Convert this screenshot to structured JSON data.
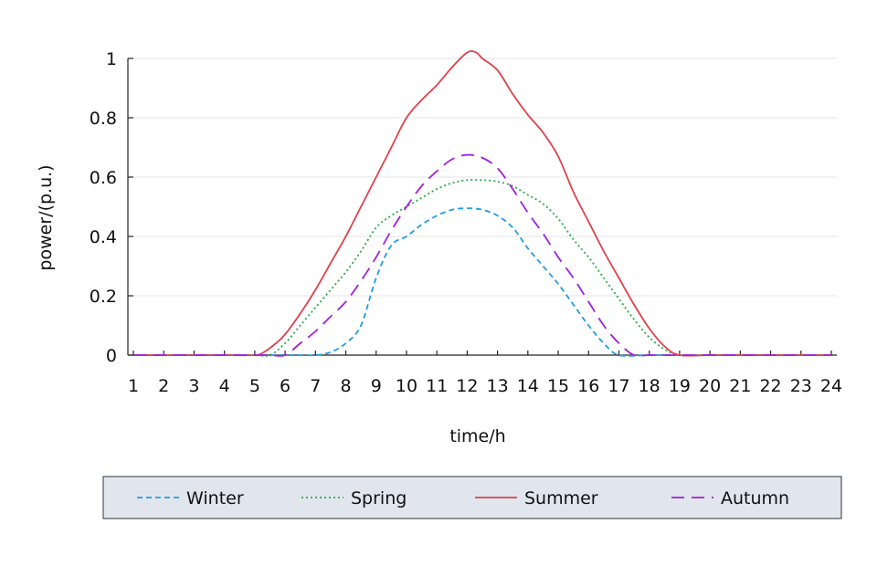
{
  "chart_data": {
    "type": "line",
    "title": "",
    "xlabel": "time/h",
    "ylabel": "power/(p.u.)",
    "xlim": [
      1,
      24
    ],
    "ylim": [
      0,
      1
    ],
    "x_ticks": [
      1,
      2,
      3,
      4,
      5,
      6,
      7,
      8,
      9,
      10,
      11,
      12,
      13,
      14,
      15,
      16,
      17,
      18,
      19,
      20,
      21,
      22,
      23,
      24
    ],
    "y_ticks": [
      0,
      0.2,
      0.4,
      0.6,
      0.8,
      1
    ],
    "y_tick_labels": [
      "0",
      "0.2",
      "0.4",
      "0.6",
      "0.8",
      "1"
    ],
    "grid": "horizontal",
    "legend_position": "bottom",
    "series": [
      {
        "name": "Winter",
        "color": "#1f9de0",
        "dash": "short-dash",
        "points": [
          [
            1,
            0
          ],
          [
            2,
            0
          ],
          [
            3,
            0
          ],
          [
            4,
            0
          ],
          [
            5,
            0
          ],
          [
            6,
            0
          ],
          [
            6.5,
            0
          ],
          [
            7,
            0
          ],
          [
            7.5,
            0.01
          ],
          [
            8,
            0.04
          ],
          [
            8.5,
            0.1
          ],
          [
            9,
            0.26
          ],
          [
            9.5,
            0.37
          ],
          [
            10,
            0.4
          ],
          [
            10.5,
            0.44
          ],
          [
            11,
            0.47
          ],
          [
            11.5,
            0.49
          ],
          [
            12,
            0.495
          ],
          [
            12.5,
            0.49
          ],
          [
            13,
            0.47
          ],
          [
            13.5,
            0.43
          ],
          [
            14,
            0.36
          ],
          [
            14.5,
            0.3
          ],
          [
            15,
            0.24
          ],
          [
            15.5,
            0.17
          ],
          [
            16,
            0.1
          ],
          [
            16.5,
            0.04
          ],
          [
            17,
            0
          ],
          [
            18,
            0
          ],
          [
            19,
            0
          ],
          [
            20,
            0
          ],
          [
            21,
            0
          ],
          [
            22,
            0
          ],
          [
            23,
            0
          ],
          [
            24,
            0
          ]
        ]
      },
      {
        "name": "Spring",
        "color": "#2aa84a",
        "dash": "dotted",
        "points": [
          [
            1,
            0
          ],
          [
            2,
            0
          ],
          [
            3,
            0
          ],
          [
            4,
            0
          ],
          [
            5,
            0
          ],
          [
            5.5,
            0
          ],
          [
            6,
            0.04
          ],
          [
            6.5,
            0.1
          ],
          [
            7,
            0.16
          ],
          [
            7.5,
            0.22
          ],
          [
            8,
            0.28
          ],
          [
            8.5,
            0.35
          ],
          [
            9,
            0.43
          ],
          [
            9.5,
            0.47
          ],
          [
            10,
            0.5
          ],
          [
            10.5,
            0.53
          ],
          [
            11,
            0.56
          ],
          [
            11.5,
            0.58
          ],
          [
            12,
            0.59
          ],
          [
            12.5,
            0.59
          ],
          [
            13,
            0.585
          ],
          [
            13.5,
            0.57
          ],
          [
            14,
            0.54
          ],
          [
            14.5,
            0.51
          ],
          [
            15,
            0.46
          ],
          [
            15.5,
            0.39
          ],
          [
            16,
            0.33
          ],
          [
            16.5,
            0.26
          ],
          [
            17,
            0.19
          ],
          [
            17.5,
            0.12
          ],
          [
            18,
            0.06
          ],
          [
            18.5,
            0.02
          ],
          [
            19,
            0
          ],
          [
            20,
            0
          ],
          [
            21,
            0
          ],
          [
            22,
            0
          ],
          [
            23,
            0
          ],
          [
            24,
            0
          ]
        ]
      },
      {
        "name": "Summer",
        "color": "#e0404b",
        "dash": "solid",
        "points": [
          [
            1,
            0
          ],
          [
            2,
            0
          ],
          [
            3,
            0
          ],
          [
            4,
            0
          ],
          [
            5,
            0
          ],
          [
            5.3,
            0.01
          ],
          [
            5.7,
            0.04
          ],
          [
            6,
            0.07
          ],
          [
            6.5,
            0.14
          ],
          [
            7,
            0.22
          ],
          [
            7.5,
            0.31
          ],
          [
            8,
            0.4
          ],
          [
            8.5,
            0.5
          ],
          [
            9,
            0.6
          ],
          [
            9.5,
            0.7
          ],
          [
            10,
            0.8
          ],
          [
            10.5,
            0.86
          ],
          [
            11,
            0.91
          ],
          [
            11.5,
            0.97
          ],
          [
            12,
            1.02
          ],
          [
            12.3,
            1.02
          ],
          [
            12.5,
            1.0
          ],
          [
            13,
            0.96
          ],
          [
            13.5,
            0.88
          ],
          [
            14,
            0.81
          ],
          [
            14.5,
            0.75
          ],
          [
            15,
            0.67
          ],
          [
            15.5,
            0.55
          ],
          [
            16,
            0.45
          ],
          [
            16.5,
            0.35
          ],
          [
            17,
            0.26
          ],
          [
            17.5,
            0.17
          ],
          [
            18,
            0.09
          ],
          [
            18.5,
            0.03
          ],
          [
            19,
            0
          ],
          [
            20,
            0
          ],
          [
            21,
            0
          ],
          [
            22,
            0
          ],
          [
            23,
            0
          ],
          [
            24,
            0
          ]
        ]
      },
      {
        "name": "Autumn",
        "color": "#a020d8",
        "dash": "long-dash",
        "points": [
          [
            1,
            0
          ],
          [
            2,
            0
          ],
          [
            3,
            0
          ],
          [
            4,
            0
          ],
          [
            5,
            0
          ],
          [
            5.5,
            0
          ],
          [
            6,
            0
          ],
          [
            6.5,
            0.04
          ],
          [
            7,
            0.08
          ],
          [
            7.5,
            0.13
          ],
          [
            8,
            0.18
          ],
          [
            8.5,
            0.25
          ],
          [
            9,
            0.33
          ],
          [
            9.5,
            0.42
          ],
          [
            10,
            0.5
          ],
          [
            10.5,
            0.57
          ],
          [
            11,
            0.62
          ],
          [
            11.5,
            0.66
          ],
          [
            12,
            0.675
          ],
          [
            12.5,
            0.665
          ],
          [
            13,
            0.63
          ],
          [
            13.5,
            0.56
          ],
          [
            14,
            0.48
          ],
          [
            14.5,
            0.41
          ],
          [
            15,
            0.33
          ],
          [
            15.5,
            0.26
          ],
          [
            16,
            0.18
          ],
          [
            16.5,
            0.1
          ],
          [
            17,
            0.04
          ],
          [
            17.5,
            0
          ],
          [
            18,
            0
          ],
          [
            19,
            0
          ],
          [
            20,
            0
          ],
          [
            21,
            0
          ],
          [
            22,
            0
          ],
          [
            23,
            0
          ],
          [
            24,
            0
          ]
        ]
      }
    ]
  }
}
